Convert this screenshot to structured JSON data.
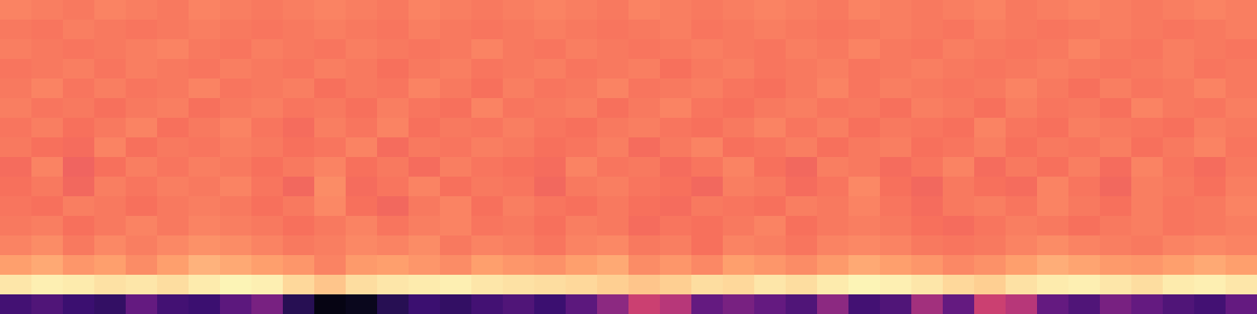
{
  "chart_data": {
    "type": "heatmap",
    "tick_labels": false,
    "zlim": [
      0,
      1
    ],
    "z": [
      [
        0.22,
        0.25,
        0.2,
        0.18,
        0.3,
        0.22,
        0.2,
        0.28,
        0.35,
        0.15,
        0.03,
        0.05,
        0.15,
        0.2,
        0.18,
        0.22,
        0.25,
        0.2,
        0.28,
        0.4,
        0.55,
        0.5,
        0.3,
        0.35,
        0.3,
        0.25,
        0.4,
        0.22,
        0.25,
        0.45,
        0.3,
        0.55,
        0.5,
        0.3,
        0.25,
        0.35,
        0.3,
        0.25,
        0.22,
        0.3
      ],
      [
        0.95,
        0.97,
        0.96,
        0.94,
        0.95,
        0.93,
        0.96,
        0.98,
        0.97,
        0.92,
        0.88,
        0.93,
        0.95,
        0.96,
        0.97,
        0.95,
        0.94,
        0.93,
        0.92,
        0.9,
        0.88,
        0.9,
        0.93,
        0.92,
        0.95,
        0.93,
        0.96,
        0.98,
        0.97,
        0.95,
        0.92,
        0.9,
        0.94,
        0.96,
        0.97,
        0.95,
        0.93,
        0.96,
        0.97,
        0.95
      ],
      [
        0.8,
        0.82,
        0.78,
        0.8,
        0.76,
        0.8,
        0.84,
        0.82,
        0.8,
        0.78,
        0.74,
        0.79,
        0.8,
        0.78,
        0.76,
        0.8,
        0.78,
        0.77,
        0.8,
        0.82,
        0.76,
        0.78,
        0.75,
        0.8,
        0.78,
        0.76,
        0.79,
        0.82,
        0.8,
        0.78,
        0.75,
        0.77,
        0.8,
        0.83,
        0.81,
        0.79,
        0.78,
        0.8,
        0.82,
        0.8
      ],
      [
        0.74,
        0.76,
        0.72,
        0.75,
        0.73,
        0.75,
        0.77,
        0.76,
        0.74,
        0.72,
        0.73,
        0.75,
        0.74,
        0.76,
        0.72,
        0.74,
        0.73,
        0.71,
        0.74,
        0.75,
        0.72,
        0.73,
        0.7,
        0.74,
        0.73,
        0.71,
        0.74,
        0.75,
        0.74,
        0.72,
        0.71,
        0.72,
        0.74,
        0.76,
        0.74,
        0.73,
        0.72,
        0.74,
        0.75,
        0.74
      ],
      [
        0.72,
        0.73,
        0.7,
        0.72,
        0.74,
        0.72,
        0.74,
        0.73,
        0.72,
        0.7,
        0.72,
        0.74,
        0.71,
        0.73,
        0.74,
        0.71,
        0.72,
        0.7,
        0.73,
        0.72,
        0.69,
        0.71,
        0.7,
        0.72,
        0.74,
        0.7,
        0.72,
        0.73,
        0.72,
        0.7,
        0.69,
        0.71,
        0.73,
        0.72,
        0.7,
        0.72,
        0.73,
        0.71,
        0.72,
        0.73
      ],
      [
        0.71,
        0.7,
        0.73,
        0.72,
        0.7,
        0.72,
        0.73,
        0.72,
        0.7,
        0.72,
        0.75,
        0.7,
        0.68,
        0.72,
        0.74,
        0.7,
        0.73,
        0.71,
        0.7,
        0.72,
        0.7,
        0.69,
        0.72,
        0.71,
        0.7,
        0.73,
        0.72,
        0.74,
        0.71,
        0.69,
        0.72,
        0.73,
        0.71,
        0.74,
        0.72,
        0.7,
        0.73,
        0.71,
        0.72,
        0.74
      ],
      [
        0.7,
        0.72,
        0.68,
        0.73,
        0.71,
        0.73,
        0.72,
        0.74,
        0.71,
        0.68,
        0.76,
        0.69,
        0.71,
        0.74,
        0.7,
        0.72,
        0.71,
        0.68,
        0.72,
        0.73,
        0.71,
        0.7,
        0.68,
        0.73,
        0.72,
        0.69,
        0.71,
        0.75,
        0.7,
        0.68,
        0.72,
        0.7,
        0.69,
        0.74,
        0.71,
        0.68,
        0.73,
        0.72,
        0.7,
        0.73
      ],
      [
        0.69,
        0.74,
        0.67,
        0.7,
        0.73,
        0.71,
        0.73,
        0.72,
        0.7,
        0.72,
        0.74,
        0.7,
        0.72,
        0.69,
        0.73,
        0.71,
        0.7,
        0.69,
        0.74,
        0.71,
        0.72,
        0.69,
        0.71,
        0.74,
        0.7,
        0.68,
        0.73,
        0.72,
        0.69,
        0.71,
        0.74,
        0.69,
        0.72,
        0.7,
        0.73,
        0.69,
        0.74,
        0.71,
        0.69,
        0.72
      ],
      [
        0.72,
        0.7,
        0.69,
        0.74,
        0.7,
        0.72,
        0.71,
        0.73,
        0.72,
        0.7,
        0.71,
        0.74,
        0.69,
        0.72,
        0.71,
        0.73,
        0.72,
        0.7,
        0.71,
        0.73,
        0.69,
        0.72,
        0.74,
        0.7,
        0.71,
        0.73,
        0.7,
        0.72,
        0.73,
        0.7,
        0.71,
        0.73,
        0.7,
        0.72,
        0.71,
        0.73,
        0.7,
        0.72,
        0.74,
        0.71
      ],
      [
        0.71,
        0.73,
        0.7,
        0.72,
        0.74,
        0.7,
        0.72,
        0.74,
        0.71,
        0.69,
        0.73,
        0.71,
        0.74,
        0.7,
        0.72,
        0.71,
        0.73,
        0.71,
        0.7,
        0.72,
        0.73,
        0.71,
        0.7,
        0.72,
        0.74,
        0.71,
        0.73,
        0.7,
        0.72,
        0.71,
        0.7,
        0.74,
        0.71,
        0.7,
        0.73,
        0.72,
        0.71,
        0.7,
        0.73,
        0.72
      ],
      [
        0.73,
        0.71,
        0.72,
        0.7,
        0.72,
        0.73,
        0.7,
        0.72,
        0.73,
        0.71,
        0.72,
        0.7,
        0.73,
        0.71,
        0.7,
        0.74,
        0.71,
        0.72,
        0.73,
        0.7,
        0.72,
        0.74,
        0.71,
        0.7,
        0.72,
        0.73,
        0.71,
        0.72,
        0.7,
        0.73,
        0.72,
        0.7,
        0.73,
        0.71,
        0.72,
        0.7,
        0.74,
        0.72,
        0.71,
        0.73
      ],
      [
        0.72,
        0.74,
        0.71,
        0.73,
        0.71,
        0.72,
        0.74,
        0.71,
        0.72,
        0.73,
        0.7,
        0.72,
        0.71,
        0.74,
        0.72,
        0.7,
        0.73,
        0.71,
        0.72,
        0.74,
        0.71,
        0.72,
        0.73,
        0.71,
        0.7,
        0.72,
        0.74,
        0.71,
        0.73,
        0.72,
        0.71,
        0.72,
        0.74,
        0.72,
        0.7,
        0.73,
        0.71,
        0.72,
        0.74,
        0.72
      ],
      [
        0.71,
        0.72,
        0.73,
        0.71,
        0.73,
        0.72,
        0.71,
        0.73,
        0.72,
        0.71,
        0.73,
        0.72,
        0.7,
        0.72,
        0.73,
        0.71,
        0.72,
        0.73,
        0.71,
        0.72,
        0.73,
        0.7,
        0.72,
        0.73,
        0.71,
        0.72,
        0.73,
        0.71,
        0.72,
        0.73,
        0.72,
        0.71,
        0.72,
        0.73,
        0.72,
        0.71,
        0.72,
        0.73,
        0.71,
        0.72
      ],
      [
        0.73,
        0.72,
        0.71,
        0.72,
        0.73,
        0.74,
        0.72,
        0.71,
        0.73,
        0.72,
        0.71,
        0.73,
        0.72,
        0.71,
        0.72,
        0.74,
        0.72,
        0.71,
        0.73,
        0.72,
        0.71,
        0.72,
        0.73,
        0.72,
        0.71,
        0.73,
        0.72,
        0.74,
        0.72,
        0.71,
        0.73,
        0.72,
        0.71,
        0.72,
        0.74,
        0.72,
        0.71,
        0.73,
        0.72,
        0.71
      ],
      [
        0.72,
        0.71,
        0.73,
        0.72,
        0.71,
        0.72,
        0.73,
        0.72,
        0.71,
        0.72,
        0.73,
        0.72,
        0.71,
        0.73,
        0.72,
        0.71,
        0.72,
        0.73,
        0.72,
        0.71,
        0.72,
        0.73,
        0.71,
        0.72,
        0.73,
        0.72,
        0.71,
        0.72,
        0.73,
        0.72,
        0.71,
        0.73,
        0.72,
        0.71,
        0.72,
        0.73,
        0.72,
        0.71,
        0.72,
        0.73
      ],
      [
        0.74,
        0.73,
        0.72,
        0.74,
        0.73,
        0.72,
        0.74,
        0.73,
        0.72,
        0.73,
        0.74,
        0.73,
        0.72,
        0.74,
        0.73,
        0.72,
        0.73,
        0.74,
        0.73,
        0.72,
        0.74,
        0.73,
        0.72,
        0.73,
        0.74,
        0.73,
        0.72,
        0.74,
        0.73,
        0.72,
        0.73,
        0.74,
        0.72,
        0.73,
        0.74,
        0.73,
        0.72,
        0.73,
        0.74,
        0.73
      ]
    ]
  }
}
